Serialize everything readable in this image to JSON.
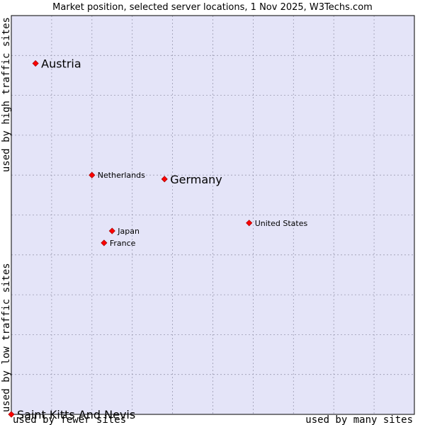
{
  "chart_data": {
    "type": "scatter",
    "title": "Market position, selected server locations, 1 Nov 2025, W3Techs.com",
    "xlabel_left": "used by fewer sites",
    "xlabel_right": "used by many sites",
    "ylabel_bottom": "used by low traffic sites",
    "ylabel_top": "used by high traffic sites",
    "xlim": [
      0,
      10
    ],
    "ylim": [
      0,
      10
    ],
    "grid": true,
    "colors": {
      "plot_background": "#e4e4f8",
      "grid": "#9a9ab0",
      "frame": "#000000",
      "marker": "#ff0000",
      "marker_edge": "#aa0000"
    },
    "points": [
      {
        "label": "Austria",
        "x": 0.6,
        "y": 8.8,
        "highlight": true
      },
      {
        "label": "Netherlands",
        "x": 2.0,
        "y": 6.0,
        "highlight": false
      },
      {
        "label": "Germany",
        "x": 3.8,
        "y": 5.9,
        "highlight": true
      },
      {
        "label": "United States",
        "x": 5.9,
        "y": 4.8,
        "highlight": false
      },
      {
        "label": "Japan",
        "x": 2.5,
        "y": 4.6,
        "highlight": false
      },
      {
        "label": "France",
        "x": 2.3,
        "y": 4.3,
        "highlight": false
      },
      {
        "label": "Saint Kitts And Nevis",
        "x": 0.0,
        "y": 0.0,
        "highlight": true
      }
    ]
  }
}
